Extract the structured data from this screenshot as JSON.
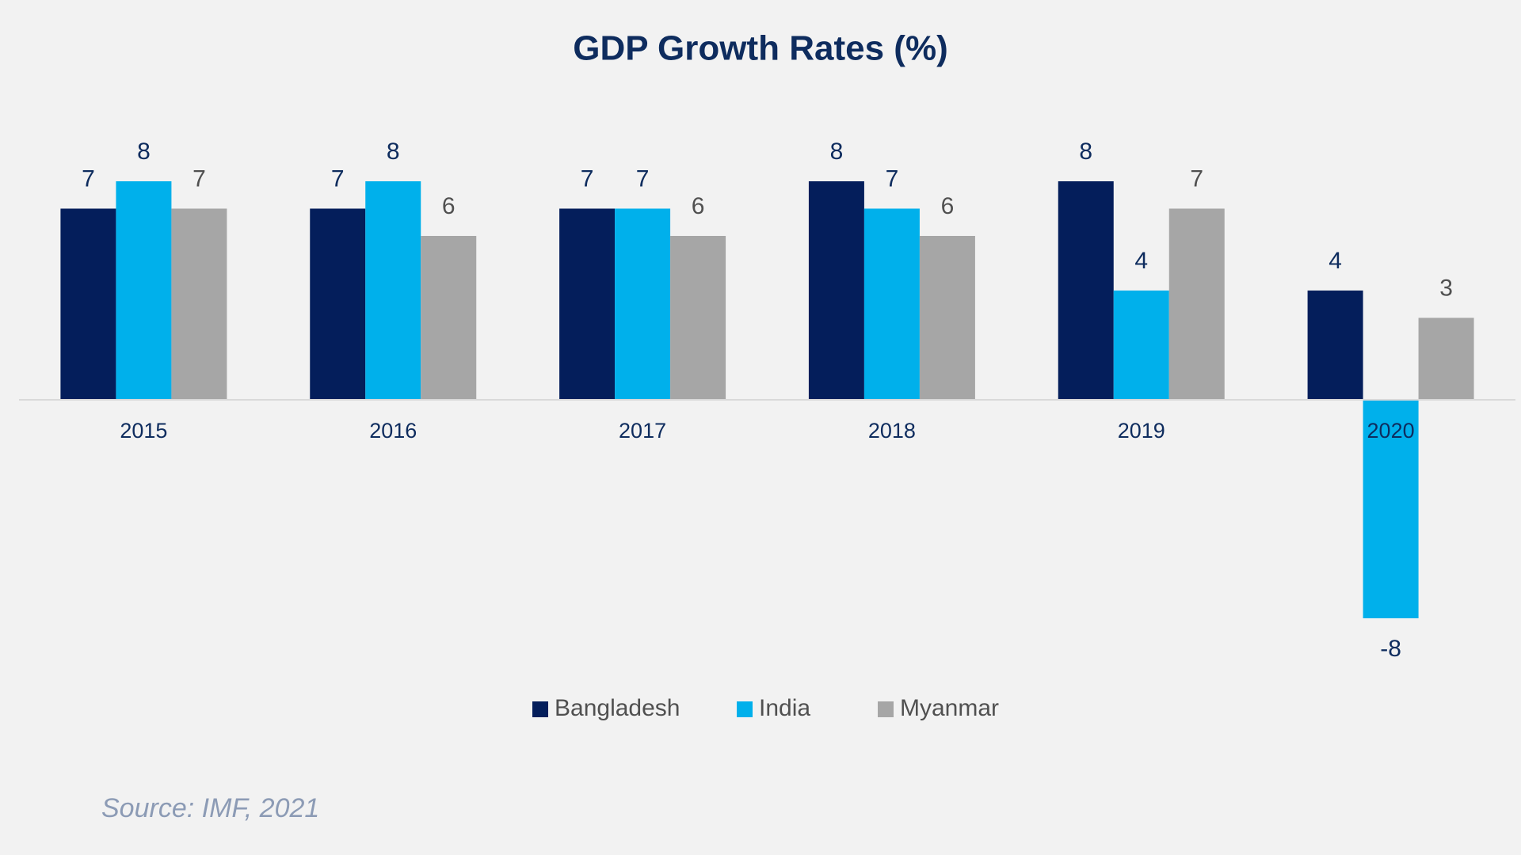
{
  "chart_data": {
    "type": "bar",
    "title": "GDP Growth Rates (%)",
    "categories": [
      "2015",
      "2016",
      "2017",
      "2018",
      "2019",
      "2020"
    ],
    "series": [
      {
        "name": "Bangladesh",
        "color": "#041e5b",
        "values": [
          7,
          7,
          7,
          8,
          8,
          4
        ]
      },
      {
        "name": "India",
        "color": "#00b0eb",
        "values": [
          8,
          8,
          7,
          7,
          4,
          -8
        ]
      },
      {
        "name": "Myanmar",
        "color": "#a6a6a6",
        "values": [
          7,
          6,
          6,
          6,
          7,
          3
        ]
      }
    ],
    "legend": "bottom",
    "source": "Source: IMF, 2021"
  }
}
